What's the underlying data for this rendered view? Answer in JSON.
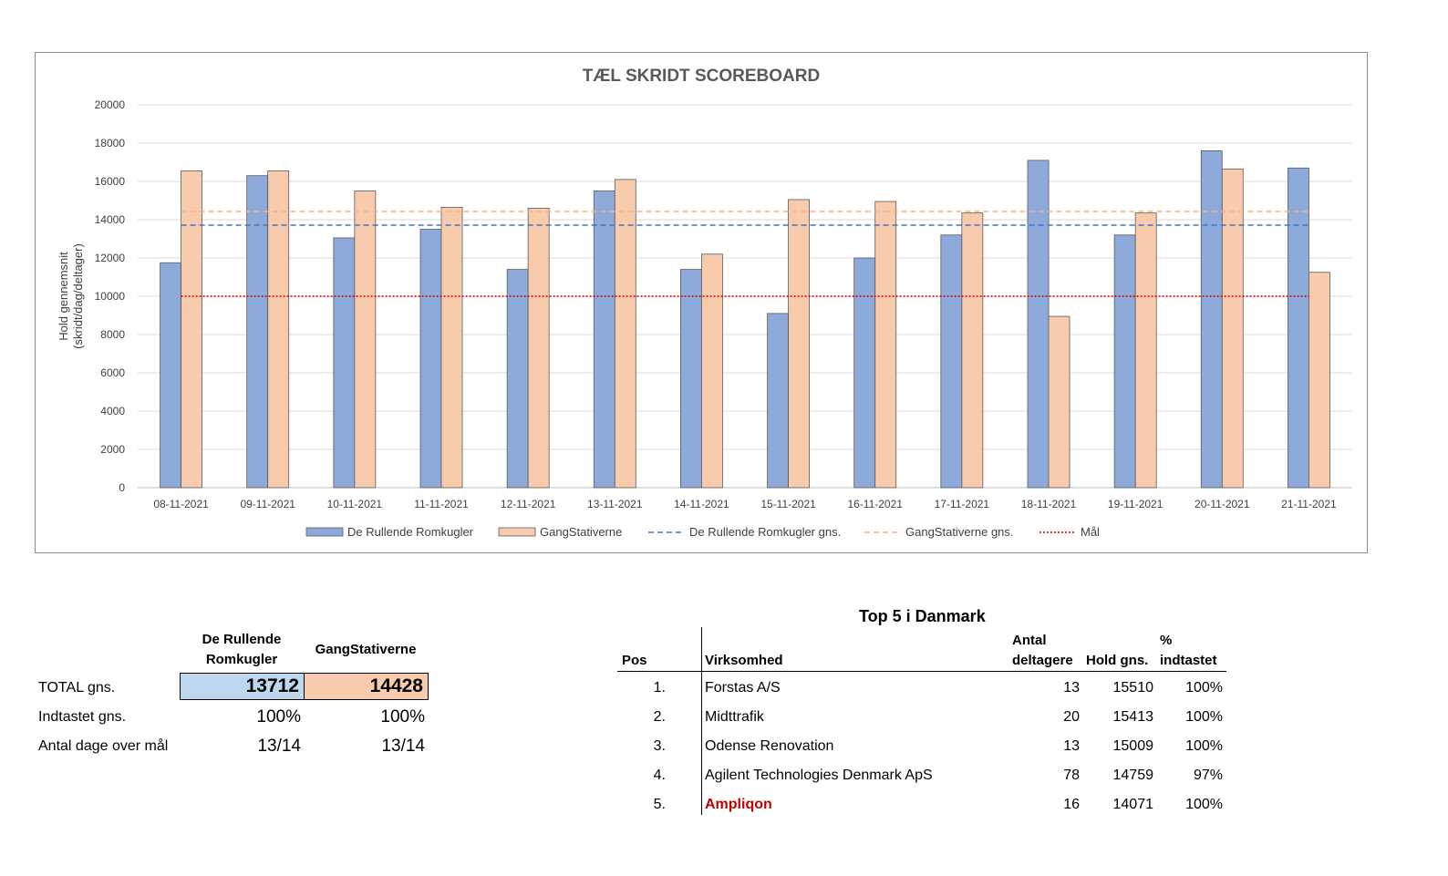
{
  "chart_data": {
    "type": "bar",
    "title": "TÆL SKRIDT SCOREBOARD",
    "ylabel": [
      "Hold gennemsnit",
      "(skridt/dag/deltager)"
    ],
    "ylim": [
      0,
      20000
    ],
    "yticks": [
      0,
      2000,
      4000,
      6000,
      8000,
      10000,
      12000,
      14000,
      16000,
      18000,
      20000
    ],
    "categories": [
      "08-11-2021",
      "09-11-2021",
      "10-11-2021",
      "11-11-2021",
      "12-11-2021",
      "13-11-2021",
      "14-11-2021",
      "15-11-2021",
      "16-11-2021",
      "17-11-2021",
      "18-11-2021",
      "19-11-2021",
      "20-11-2021",
      "21-11-2021"
    ],
    "series": [
      {
        "name": "De Rullende Romkugler",
        "color": "#8eaadb",
        "values": [
          11750,
          16300,
          13050,
          13500,
          11400,
          15500,
          11400,
          9100,
          12000,
          13200,
          17100,
          13200,
          17600,
          16700
        ]
      },
      {
        "name": "GangStativerne",
        "color": "#f8cbad",
        "values": [
          16550,
          16550,
          15500,
          14650,
          14600,
          16100,
          12200,
          15050,
          14950,
          14350,
          8950,
          14350,
          16650,
          11250
        ]
      }
    ],
    "lines": [
      {
        "name": "De Rullende Romkugler gns.",
        "value": 13712,
        "color": "#4472c4",
        "style": "dashed"
      },
      {
        "name": "GangStativerne gns.",
        "value": 14428,
        "color": "#f4b183",
        "style": "dashed"
      },
      {
        "name": "Mål",
        "value": 10000,
        "color": "#c00000",
        "style": "dotted"
      }
    ],
    "grid": true,
    "legend": "bottom"
  },
  "summary": {
    "col1_header": [
      "De Rullende",
      "Romkugler"
    ],
    "col2_header": "GangStativerne",
    "rows": [
      {
        "label": "TOTAL gns.",
        "v1": "13712",
        "v2": "14428"
      },
      {
        "label": "Indtastet gns.",
        "v1": "100%",
        "v2": "100%"
      },
      {
        "label": "Antal dage over mål",
        "v1": "13/14",
        "v2": "13/14"
      }
    ],
    "box_colors": {
      "col1": "#bdd7ee",
      "col2": "#f8cbad"
    }
  },
  "top5": {
    "title": "Top 5 i Danmark",
    "headers": {
      "pos": "Pos",
      "company": "Virksomhed",
      "participants": [
        "Antal",
        "deltagere"
      ],
      "avg": "Hold gns.",
      "pct": [
        "%",
        "indtastet"
      ]
    },
    "rows": [
      {
        "pos": "1.",
        "company": "Forstas A/S",
        "participants": "13",
        "avg": "15510",
        "pct": "100%"
      },
      {
        "pos": "2.",
        "company": "Midttrafik",
        "participants": "20",
        "avg": "15413",
        "pct": "100%"
      },
      {
        "pos": "3.",
        "company": "Odense Renovation",
        "participants": "13",
        "avg": "15009",
        "pct": "100%"
      },
      {
        "pos": "4.",
        "company": "Agilent Technologies Denmark ApS",
        "participants": "78",
        "avg": "14759",
        "pct": "97%"
      },
      {
        "pos": "5.",
        "company": "Ampliqon",
        "participants": "16",
        "avg": "14071",
        "pct": "100%"
      }
    ],
    "highlight_color": "#c00000"
  }
}
